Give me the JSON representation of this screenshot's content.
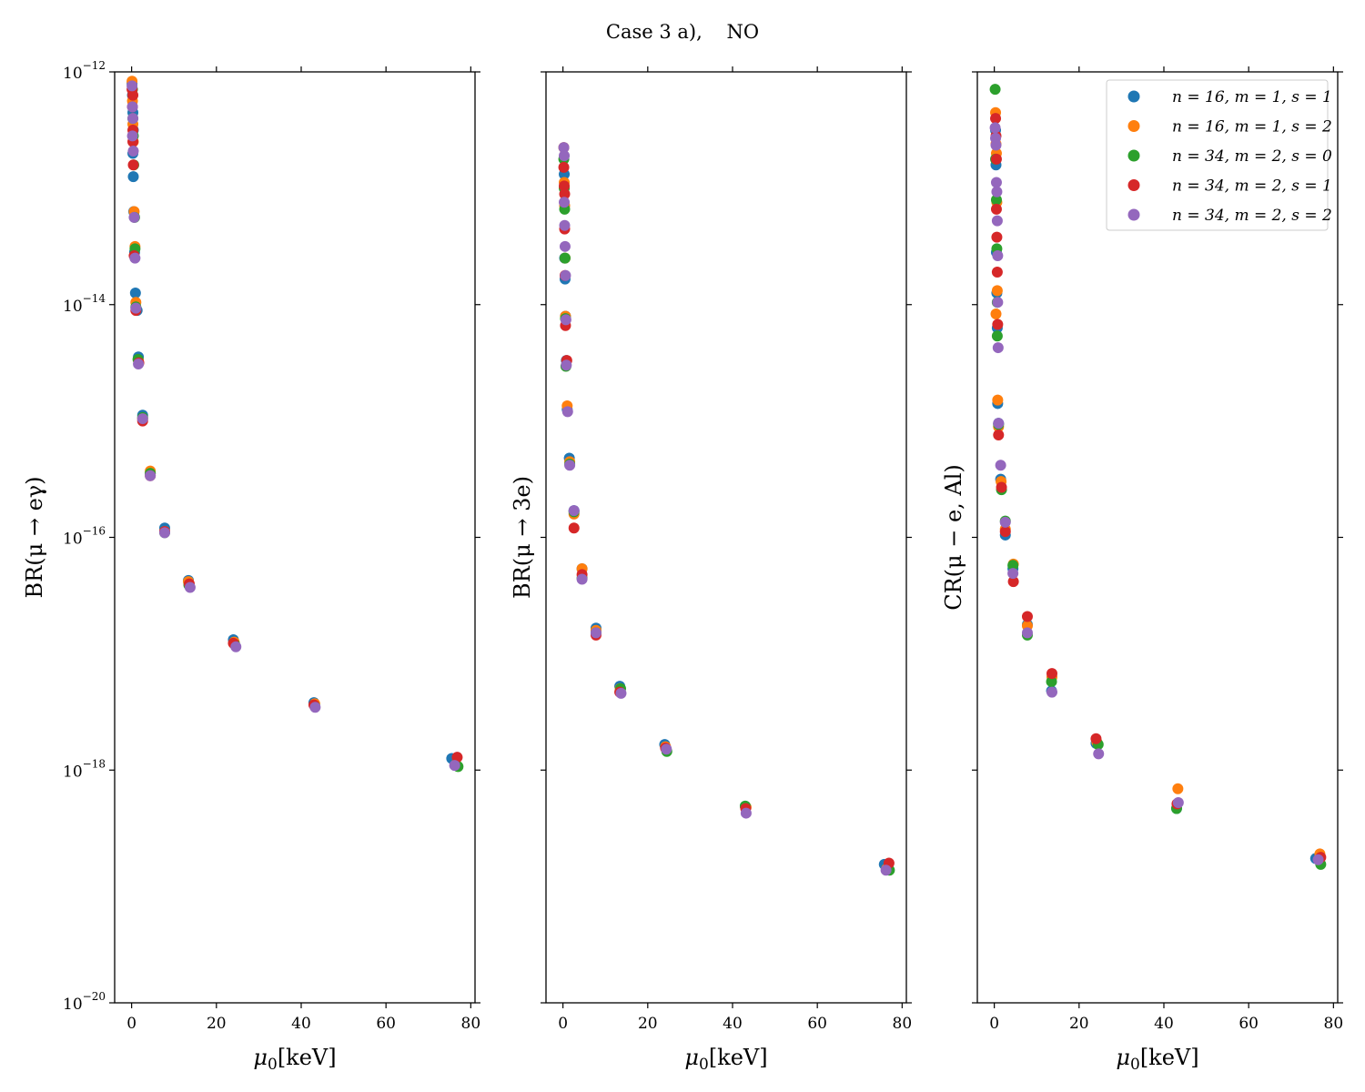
{
  "figure": {
    "title": "Case 3 a),    NO"
  },
  "colors": {
    "n16_m1_s1": "#1f77b4",
    "n16_m1_s2": "#ff7f0e",
    "n34_m2_s0": "#2ca02c",
    "n34_m2_s1": "#d62728",
    "n34_m2_s2": "#9467bd"
  },
  "legend": [
    {
      "key": "n16_m1_s1",
      "label": "n = 16, m = 1, s = 1"
    },
    {
      "key": "n16_m1_s2",
      "label": "n = 16, m = 1, s = 2"
    },
    {
      "key": "n34_m2_s0",
      "label": "n = 34, m = 2, s = 0"
    },
    {
      "key": "n34_m2_s1",
      "label": "n = 34, m = 2, s = 1"
    },
    {
      "key": "n34_m2_s2",
      "label": "n = 34, m = 2, s = 2"
    }
  ],
  "chart_data": [
    {
      "type": "scatter",
      "name": "br-mu-e-gamma",
      "ylabel": "BR(μ → eγ)",
      "xlabel": "μ0[keV]",
      "xlim": [
        -4,
        81
      ],
      "ylim_log10": [
        -20,
        -12
      ],
      "yscale": "log",
      "yticks": [
        "10^-12",
        "10^-14",
        "10^-16",
        "10^-18",
        "10^-20"
      ],
      "xticks": [
        "0",
        "20",
        "40",
        "60",
        "80"
      ],
      "series": [
        {
          "key": "n16_m1_s1",
          "points": [
            [
              0.1,
              -12.1
            ],
            [
              0.2,
              -12.2
            ],
            [
              0.3,
              -12.35
            ],
            [
              0.4,
              -12.5
            ],
            [
              0.3,
              -12.7
            ],
            [
              0.4,
              -12.9
            ],
            [
              0.5,
              -13.2
            ],
            [
              0.7,
              -13.55
            ],
            [
              0.9,
              -13.9
            ],
            [
              1.3,
              -14.05
            ],
            [
              1.6,
              -14.45
            ],
            [
              2.6,
              -14.95
            ],
            [
              4.4,
              -15.45
            ],
            [
              7.8,
              -15.92
            ],
            [
              13.4,
              -16.37
            ],
            [
              24.0,
              -16.88
            ],
            [
              43.0,
              -17.42
            ],
            [
              75.5,
              -17.9
            ]
          ]
        },
        {
          "key": "n16_m1_s2",
          "points": [
            [
              0.1,
              -12.08
            ],
            [
              0.2,
              -12.25
            ],
            [
              0.3,
              -12.45
            ],
            [
              0.4,
              -12.6
            ],
            [
              0.6,
              -13.2
            ],
            [
              0.8,
              -13.5
            ],
            [
              1.0,
              -13.98
            ],
            [
              1.6,
              -14.48
            ],
            [
              2.6,
              -14.98
            ],
            [
              4.4,
              -15.43
            ],
            [
              7.8,
              -15.95
            ],
            [
              13.4,
              -16.38
            ],
            [
              24.2,
              -16.9
            ],
            [
              43.2,
              -17.43
            ],
            [
              76.5,
              -17.95
            ]
          ]
        },
        {
          "key": "n34_m2_s0",
          "points": [
            [
              0.2,
              -12.15
            ],
            [
              0.3,
              -12.4
            ],
            [
              0.4,
              -12.55
            ],
            [
              0.5,
              -12.8
            ],
            [
              0.7,
              -13.25
            ],
            [
              0.8,
              -13.52
            ],
            [
              1.0,
              -14.02
            ],
            [
              1.5,
              -14.47
            ],
            [
              2.6,
              -14.97
            ],
            [
              4.4,
              -15.45
            ],
            [
              7.8,
              -15.96
            ],
            [
              13.5,
              -16.41
            ],
            [
              24.3,
              -16.92
            ],
            [
              43.2,
              -17.45
            ],
            [
              77.0,
              -17.97
            ]
          ]
        },
        {
          "key": "n34_m2_s1",
          "points": [
            [
              0.1,
              -12.15
            ],
            [
              0.3,
              -12.2
            ],
            [
              0.2,
              -12.3
            ],
            [
              0.3,
              -12.5
            ],
            [
              0.3,
              -12.6
            ],
            [
              0.4,
              -12.8
            ],
            [
              0.6,
              -13.58
            ],
            [
              1.0,
              -14.05
            ],
            [
              1.7,
              -14.5
            ],
            [
              2.6,
              -15.0
            ],
            [
              4.4,
              -15.47
            ],
            [
              7.8,
              -15.95
            ],
            [
              13.6,
              -16.4
            ],
            [
              24.0,
              -16.91
            ],
            [
              43.0,
              -17.44
            ],
            [
              76.8,
              -17.89
            ]
          ]
        },
        {
          "key": "n34_m2_s2",
          "points": [
            [
              0.1,
              -12.12
            ],
            [
              0.2,
              -12.3
            ],
            [
              0.3,
              -12.4
            ],
            [
              0.2,
              -12.55
            ],
            [
              0.4,
              -12.68
            ],
            [
              0.6,
              -13.25
            ],
            [
              0.8,
              -13.6
            ],
            [
              1.0,
              -14.03
            ],
            [
              1.6,
              -14.51
            ],
            [
              2.6,
              -14.98
            ],
            [
              4.4,
              -15.47
            ],
            [
              7.8,
              -15.96
            ],
            [
              13.8,
              -16.43
            ],
            [
              24.6,
              -16.94
            ],
            [
              43.3,
              -17.46
            ],
            [
              76.2,
              -17.96
            ]
          ]
        }
      ]
    },
    {
      "type": "scatter",
      "name": "br-mu-3e",
      "ylabel": "BR(μ → 3e)",
      "xlabel": "μ0[keV]",
      "xlim": [
        -4,
        81
      ],
      "ylim_log10": [
        -20,
        -12
      ],
      "yscale": "log",
      "xticks": [
        "0",
        "20",
        "40",
        "60",
        "80"
      ],
      "series": [
        {
          "key": "n16_m1_s1",
          "points": [
            [
              0.3,
              -12.88
            ],
            [
              0.4,
              -13.6
            ],
            [
              0.5,
              -13.78
            ],
            [
              0.6,
              -14.1
            ],
            [
              0.8,
              -14.48
            ],
            [
              1.0,
              -14.9
            ],
            [
              1.5,
              -15.32
            ],
            [
              2.6,
              -15.77
            ],
            [
              4.5,
              -16.27
            ],
            [
              7.8,
              -16.78
            ],
            [
              13.4,
              -17.28
            ],
            [
              24.0,
              -17.78
            ],
            [
              43.0,
              -18.31
            ],
            [
              75.8,
              -18.81
            ]
          ]
        },
        {
          "key": "n16_m1_s2",
          "points": [
            [
              0.2,
              -12.65
            ],
            [
              0.3,
              -12.95
            ],
            [
              0.4,
              -13.15
            ],
            [
              0.5,
              -13.6
            ],
            [
              0.6,
              -14.1
            ],
            [
              1.0,
              -14.87
            ],
            [
              1.6,
              -15.35
            ],
            [
              2.6,
              -15.8
            ],
            [
              4.5,
              -16.27
            ],
            [
              7.8,
              -16.8
            ],
            [
              13.5,
              -17.3
            ],
            [
              24.2,
              -17.8
            ],
            [
              43.2,
              -18.32
            ],
            [
              76.3,
              -18.85
            ]
          ]
        },
        {
          "key": "n34_m2_s0",
          "points": [
            [
              0.2,
              -12.75
            ],
            [
              0.3,
              -13.0
            ],
            [
              0.4,
              -13.18
            ],
            [
              0.5,
              -13.6
            ],
            [
              0.6,
              -14.12
            ],
            [
              0.7,
              -14.53
            ],
            [
              1.6,
              -15.37
            ],
            [
              2.6,
              -15.78
            ],
            [
              4.5,
              -16.35
            ],
            [
              7.8,
              -16.82
            ],
            [
              13.6,
              -17.3
            ],
            [
              24.5,
              -17.84
            ],
            [
              43.0,
              -18.31
            ],
            [
              77.0,
              -18.86
            ]
          ]
        },
        {
          "key": "n34_m2_s1",
          "points": [
            [
              0.2,
              -12.82
            ],
            [
              0.3,
              -12.98
            ],
            [
              0.4,
              -13.05
            ],
            [
              0.4,
              -13.35
            ],
            [
              0.5,
              -13.75
            ],
            [
              0.6,
              -14.18
            ],
            [
              0.9,
              -14.48
            ],
            [
              2.6,
              -15.92
            ],
            [
              4.5,
              -16.32
            ],
            [
              7.8,
              -16.84
            ],
            [
              13.4,
              -17.33
            ],
            [
              24.2,
              -17.81
            ],
            [
              43.1,
              -18.33
            ],
            [
              76.9,
              -18.8
            ]
          ]
        },
        {
          "key": "n34_m2_s2",
          "points": [
            [
              0.2,
              -12.65
            ],
            [
              0.3,
              -12.72
            ],
            [
              0.3,
              -13.12
            ],
            [
              0.4,
              -13.32
            ],
            [
              0.5,
              -13.5
            ],
            [
              0.6,
              -13.75
            ],
            [
              0.7,
              -14.13
            ],
            [
              0.8,
              -14.52
            ],
            [
              1.1,
              -14.92
            ],
            [
              1.6,
              -15.38
            ],
            [
              2.6,
              -15.77
            ],
            [
              4.5,
              -16.36
            ],
            [
              7.8,
              -16.82
            ],
            [
              13.7,
              -17.34
            ],
            [
              24.4,
              -17.82
            ],
            [
              43.2,
              -18.37
            ],
            [
              76.2,
              -18.86
            ]
          ]
        }
      ]
    },
    {
      "type": "scatter",
      "name": "cr-mu-e-al",
      "ylabel": "CR(μ − e, Al)",
      "xlabel": "μ0[keV]",
      "xlim": [
        -4,
        81
      ],
      "ylim_log10": [
        -20,
        -12
      ],
      "yscale": "log",
      "xticks": [
        "0",
        "20",
        "40",
        "60",
        "80"
      ],
      "series": [
        {
          "key": "n16_m1_s1",
          "points": [
            [
              0.3,
              -12.5
            ],
            [
              0.4,
              -12.8
            ],
            [
              0.5,
              -13.55
            ],
            [
              0.6,
              -13.9
            ],
            [
              0.7,
              -14.2
            ],
            [
              0.8,
              -14.85
            ],
            [
              1.0,
              -15.02
            ],
            [
              1.5,
              -15.5
            ],
            [
              2.6,
              -15.98
            ],
            [
              4.4,
              -16.27
            ],
            [
              7.8,
              -16.75
            ],
            [
              13.5,
              -17.32
            ],
            [
              24.0,
              -17.77
            ],
            [
              43.0,
              -18.33
            ],
            [
              75.8,
              -18.76
            ]
          ]
        },
        {
          "key": "n16_m1_s2",
          "points": [
            [
              0.3,
              -12.35
            ],
            [
              0.4,
              -12.62
            ],
            [
              0.5,
              -12.7
            ],
            [
              0.6,
              -13.12
            ],
            [
              0.7,
              -13.88
            ],
            [
              0.4,
              -14.08
            ],
            [
              0.8,
              -14.82
            ],
            [
              1.0,
              -15.05
            ],
            [
              1.6,
              -15.52
            ],
            [
              2.6,
              -15.93
            ],
            [
              4.5,
              -16.23
            ],
            [
              7.8,
              -16.76
            ],
            [
              13.6,
              -17.2
            ],
            [
              24.2,
              -17.76
            ],
            [
              43.3,
              -18.16
            ],
            [
              76.8,
              -18.72
            ]
          ]
        },
        {
          "key": "n34_m2_s0",
          "points": [
            [
              0.2,
              -12.15
            ],
            [
              0.3,
              -12.75
            ],
            [
              0.5,
              -13.1
            ],
            [
              0.6,
              -13.52
            ],
            [
              0.7,
              -13.98
            ],
            [
              0.7,
              -14.27
            ],
            [
              1.0,
              -15.03
            ],
            [
              1.7,
              -15.59
            ],
            [
              2.6,
              -15.86
            ],
            [
              4.4,
              -16.24
            ],
            [
              7.8,
              -16.84
            ],
            [
              13.5,
              -17.24
            ],
            [
              24.5,
              -17.78
            ],
            [
              43.0,
              -18.33
            ],
            [
              77.0,
              -18.81
            ]
          ]
        },
        {
          "key": "n34_m2_s1",
          "points": [
            [
              0.3,
              -12.4
            ],
            [
              0.4,
              -12.55
            ],
            [
              0.5,
              -12.75
            ],
            [
              0.5,
              -13.18
            ],
            [
              0.6,
              -13.42
            ],
            [
              0.7,
              -13.72
            ],
            [
              0.8,
              -14.17
            ],
            [
              1.0,
              -15.12
            ],
            [
              1.7,
              -15.57
            ],
            [
              2.6,
              -15.95
            ],
            [
              4.5,
              -16.38
            ],
            [
              7.8,
              -16.68
            ],
            [
              13.6,
              -17.17
            ],
            [
              24.0,
              -17.73
            ],
            [
              43.1,
              -18.29
            ],
            [
              77.0,
              -18.75
            ]
          ]
        },
        {
          "key": "n34_m2_s2",
          "points": [
            [
              0.2,
              -12.48
            ],
            [
              0.3,
              -12.57
            ],
            [
              0.4,
              -12.63
            ],
            [
              0.5,
              -12.95
            ],
            [
              0.6,
              -13.03
            ],
            [
              0.7,
              -13.28
            ],
            [
              0.8,
              -13.58
            ],
            [
              0.8,
              -13.98
            ],
            [
              0.9,
              -14.37
            ],
            [
              1.0,
              -15.02
            ],
            [
              1.5,
              -15.38
            ],
            [
              2.6,
              -15.87
            ],
            [
              4.4,
              -16.31
            ],
            [
              7.8,
              -16.82
            ],
            [
              13.6,
              -17.33
            ],
            [
              24.6,
              -17.86
            ],
            [
              43.4,
              -18.28
            ],
            [
              76.4,
              -18.77
            ]
          ]
        }
      ]
    }
  ]
}
